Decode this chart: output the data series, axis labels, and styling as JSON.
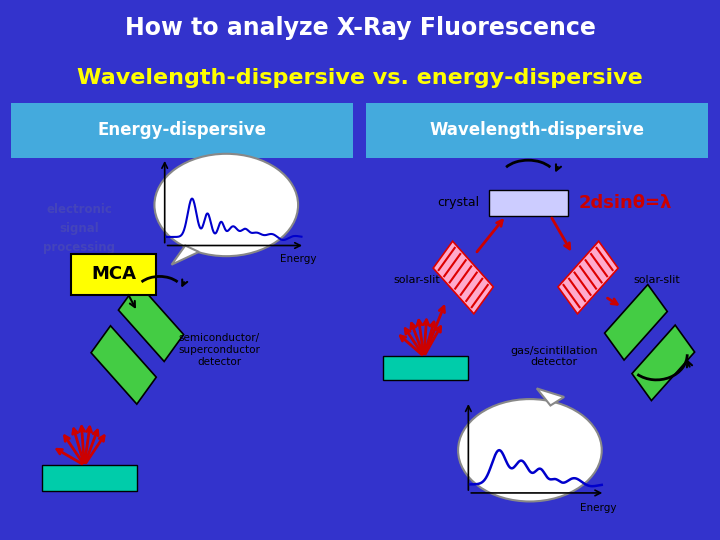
{
  "title_line1": "How to analyze X-Ray Fluorescence",
  "title_line2": "Wavelength-dispersive vs. energy-dispersive",
  "title_bg": "#3333cc",
  "title_color1": "#ffffff",
  "title_color2": "#ffff00",
  "header_bg": "#44aadd",
  "header_left": "Energy-dispersive",
  "header_right": "Wavelength-dispersive",
  "left_label": "electronic\nsignal\nprocessing",
  "mca_label": "MCA",
  "mca_color": "#ffff00",
  "detector_label": "semiconductor/\nsuperconductor\ndetector",
  "sample_color": "#00ccaa",
  "detector_color": "#44cc44",
  "arrow_color": "#cc0000",
  "crystal_color": "#ccccff",
  "crystal_label": "crystal",
  "solar_label": "solar-slit",
  "gas_label": "gas/scintillation\ndetector",
  "solar_color": "#ffaacc",
  "formula": "2dsinθ=λ",
  "formula_color": "#cc0000",
  "energy_label": "Energy",
  "curve_color": "#0000cc",
  "panel_border": "#888888"
}
